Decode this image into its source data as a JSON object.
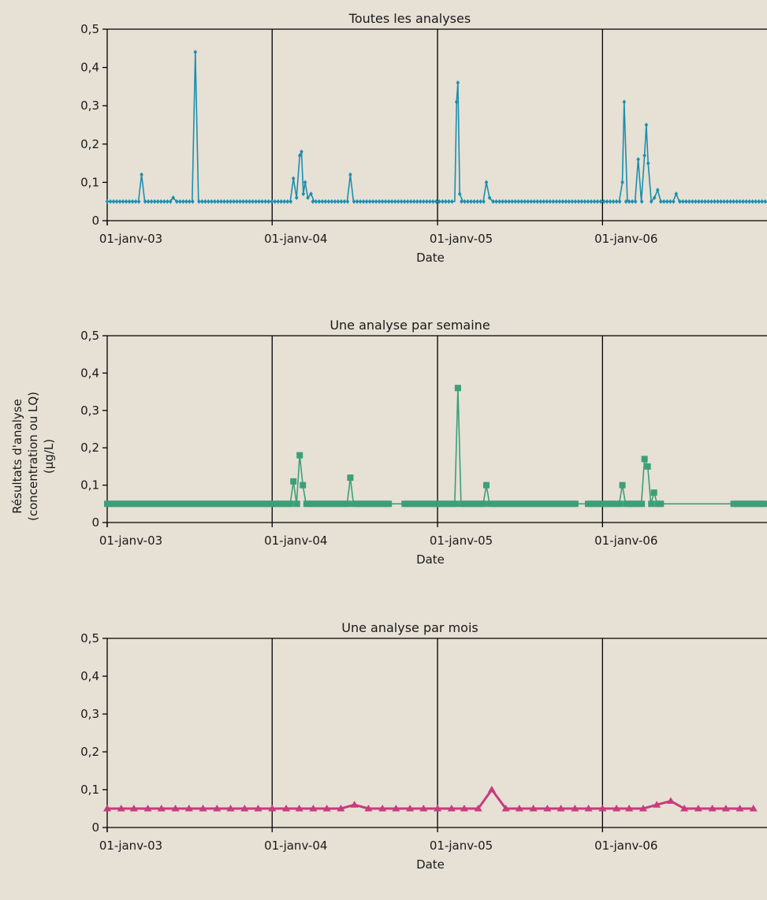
{
  "shared": {
    "ylabel_lines": [
      "Résultats d'analyse",
      "(concentration ou LQ)",
      "(µg/L)"
    ],
    "ytick_labels": [
      "0",
      "0,1",
      "0,2",
      "0,3",
      "0,4",
      "0,5"
    ],
    "ytick_values": [
      0,
      0.1,
      0.2,
      0.3,
      0.4,
      0.5
    ],
    "xtick_labels": [
      "01-janv-03",
      "01-janv-04",
      "01-janv-05",
      "01-janv-06"
    ],
    "xtick_dates": [
      "2003-01-01",
      "2004-01-01",
      "2005-01-01",
      "2006-01-01"
    ],
    "x_range": [
      "2003-01-01",
      "2006-12-31"
    ]
  },
  "chart_data": [
    {
      "type": "line",
      "title": "Toutes les analyses",
      "xlabel": "Date",
      "ylim": [
        0,
        0.5
      ],
      "color": "#1b8fae",
      "marker": "diamond",
      "baseline": 0.05,
      "baseline_marker_step_days": 7,
      "series": [
        {
          "values": [
            [
              "2003-01-01",
              0.05
            ],
            [
              "2003-03-11",
              0.05
            ],
            [
              "2003-03-18",
              0.12
            ],
            [
              "2003-03-25",
              0.05
            ],
            [
              "2003-05-20",
              0.05
            ],
            [
              "2003-05-27",
              0.06
            ],
            [
              "2003-06-03",
              0.05
            ],
            [
              "2003-07-08",
              0.05
            ],
            [
              "2003-07-15",
              0.44
            ],
            [
              "2003-07-22",
              0.05
            ],
            [
              "2004-02-10",
              0.05
            ],
            [
              "2004-02-17",
              0.11
            ],
            [
              "2004-02-24",
              0.06
            ],
            [
              "2004-03-02",
              0.17
            ],
            [
              "2004-03-06",
              0.18
            ],
            [
              "2004-03-10",
              0.07
            ],
            [
              "2004-03-14",
              0.1
            ],
            [
              "2004-03-20",
              0.06
            ],
            [
              "2004-03-27",
              0.07
            ],
            [
              "2004-04-03",
              0.05
            ],
            [
              "2004-06-15",
              0.05
            ],
            [
              "2004-06-22",
              0.12
            ],
            [
              "2004-06-29",
              0.05
            ],
            [
              "2005-02-08",
              0.05
            ],
            [
              "2005-02-12",
              0.31
            ],
            [
              "2005-02-15",
              0.36
            ],
            [
              "2005-02-19",
              0.07
            ],
            [
              "2005-02-26",
              0.05
            ],
            [
              "2005-04-12",
              0.05
            ],
            [
              "2005-04-19",
              0.1
            ],
            [
              "2005-04-26",
              0.06
            ],
            [
              "2005-05-03",
              0.05
            ],
            [
              "2006-02-07",
              0.05
            ],
            [
              "2006-02-14",
              0.1
            ],
            [
              "2006-02-18",
              0.31
            ],
            [
              "2006-02-25",
              0.05
            ],
            [
              "2006-03-14",
              0.05
            ],
            [
              "2006-03-21",
              0.16
            ],
            [
              "2006-03-28",
              0.05
            ],
            [
              "2006-04-04",
              0.17
            ],
            [
              "2006-04-08",
              0.25
            ],
            [
              "2006-04-12",
              0.15
            ],
            [
              "2006-04-19",
              0.05
            ],
            [
              "2006-04-26",
              0.06
            ],
            [
              "2006-05-03",
              0.08
            ],
            [
              "2006-05-10",
              0.05
            ],
            [
              "2006-06-06",
              0.05
            ],
            [
              "2006-06-13",
              0.07
            ],
            [
              "2006-06-20",
              0.05
            ],
            [
              "2006-12-31",
              0.05
            ]
          ]
        }
      ]
    },
    {
      "type": "line",
      "title": "Une analyse par semaine",
      "xlabel": "Date",
      "ylim": [
        0,
        0.5
      ],
      "color": "#3c9f78",
      "marker": "square",
      "baseline": 0.05,
      "baseline_marker_step_days": 7,
      "baseline_marker_gaps": [
        [
          "2004-09-20",
          "2004-10-15"
        ],
        [
          "2005-11-05",
          "2005-11-25"
        ],
        [
          "2006-05-15",
          "2006-10-15"
        ]
      ],
      "series": [
        {
          "values": [
            [
              "2003-01-01",
              0.05
            ],
            [
              "2004-02-10",
              0.05
            ],
            [
              "2004-02-17",
              0.11
            ],
            [
              "2004-02-24",
              0.05
            ],
            [
              "2004-03-02",
              0.18
            ],
            [
              "2004-03-09",
              0.1
            ],
            [
              "2004-03-16",
              0.05
            ],
            [
              "2004-06-15",
              0.05
            ],
            [
              "2004-06-22",
              0.12
            ],
            [
              "2004-06-29",
              0.05
            ],
            [
              "2005-02-08",
              0.05
            ],
            [
              "2005-02-15",
              0.36
            ],
            [
              "2005-02-22",
              0.05
            ],
            [
              "2005-04-12",
              0.05
            ],
            [
              "2005-04-19",
              0.1
            ],
            [
              "2005-04-26",
              0.05
            ],
            [
              "2006-02-07",
              0.05
            ],
            [
              "2006-02-14",
              0.1
            ],
            [
              "2006-02-21",
              0.05
            ],
            [
              "2006-03-28",
              0.05
            ],
            [
              "2006-04-04",
              0.17
            ],
            [
              "2006-04-11",
              0.15
            ],
            [
              "2006-04-18",
              0.05
            ],
            [
              "2006-04-25",
              0.08
            ],
            [
              "2006-05-02",
              0.05
            ],
            [
              "2006-12-31",
              0.05
            ]
          ]
        }
      ]
    },
    {
      "type": "line",
      "title": "Une analyse par mois",
      "xlabel": "Date",
      "ylim": [
        0,
        0.5
      ],
      "color": "#c93b7d",
      "marker": "triangle",
      "series": [
        {
          "x_start": "2003-01-01",
          "x_step_months": 1,
          "values": [
            0.05,
            0.05,
            0.05,
            0.05,
            0.05,
            0.05,
            0.05,
            0.05,
            0.05,
            0.05,
            0.05,
            0.05,
            0.05,
            0.05,
            0.05,
            0.05,
            0.05,
            0.05,
            0.06,
            0.05,
            0.05,
            0.05,
            0.05,
            0.05,
            0.05,
            0.05,
            0.05,
            0.05,
            0.1,
            0.05,
            0.05,
            0.05,
            0.05,
            0.05,
            0.05,
            0.05,
            0.05,
            0.05,
            0.05,
            0.05,
            0.06,
            0.07,
            0.05,
            0.05,
            0.05,
            0.05,
            0.05,
            0.05
          ]
        }
      ]
    }
  ]
}
